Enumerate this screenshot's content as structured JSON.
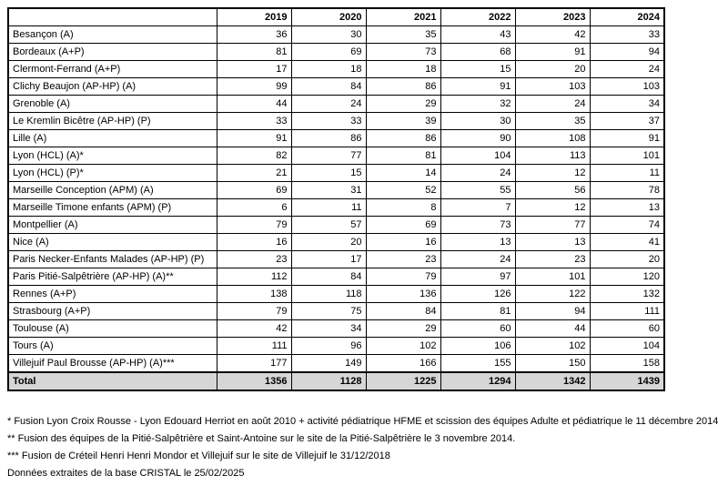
{
  "table": {
    "header": [
      "",
      "2019",
      "2020",
      "2021",
      "2022",
      "2023",
      "2024"
    ],
    "rows": [
      {
        "label": "Besançon (A)",
        "values": [
          "36",
          "30",
          "35",
          "43",
          "42",
          "33"
        ]
      },
      {
        "label": "Bordeaux (A+P)",
        "values": [
          "81",
          "69",
          "73",
          "68",
          "91",
          "94"
        ]
      },
      {
        "label": "Clermont-Ferrand (A+P)",
        "values": [
          "17",
          "18",
          "18",
          "15",
          "20",
          "24"
        ]
      },
      {
        "label": "Clichy Beaujon (AP-HP) (A)",
        "values": [
          "99",
          "84",
          "86",
          "91",
          "103",
          "103"
        ]
      },
      {
        "label": "Grenoble (A)",
        "values": [
          "44",
          "24",
          "29",
          "32",
          "24",
          "34"
        ]
      },
      {
        "label": "Le Kremlin Bicêtre (AP-HP) (P)",
        "values": [
          "33",
          "33",
          "39",
          "30",
          "35",
          "37"
        ]
      },
      {
        "label": "Lille (A)",
        "values": [
          "91",
          "86",
          "86",
          "90",
          "108",
          "91"
        ]
      },
      {
        "label": "Lyon (HCL) (A)*",
        "values": [
          "82",
          "77",
          "81",
          "104",
          "113",
          "101"
        ]
      },
      {
        "label": "Lyon (HCL) (P)*",
        "values": [
          "21",
          "15",
          "14",
          "24",
          "12",
          "11"
        ]
      },
      {
        "label": "Marseille Conception (APM) (A)",
        "values": [
          "69",
          "31",
          "52",
          "55",
          "56",
          "78"
        ]
      },
      {
        "label": "Marseille Timone enfants (APM) (P)",
        "values": [
          "6",
          "11",
          "8",
          "7",
          "12",
          "13"
        ]
      },
      {
        "label": "Montpellier (A)",
        "values": [
          "79",
          "57",
          "69",
          "73",
          "77",
          "74"
        ]
      },
      {
        "label": "Nice (A)",
        "values": [
          "16",
          "20",
          "16",
          "13",
          "13",
          "41"
        ]
      },
      {
        "label": "Paris Necker-Enfants Malades (AP-HP) (P)",
        "values": [
          "23",
          "17",
          "23",
          "24",
          "23",
          "20"
        ]
      },
      {
        "label": "Paris Pitié-Salpêtrière (AP-HP) (A)**",
        "values": [
          "112",
          "84",
          "79",
          "97",
          "101",
          "120"
        ]
      },
      {
        "label": "Rennes (A+P)",
        "values": [
          "138",
          "118",
          "136",
          "126",
          "122",
          "132"
        ]
      },
      {
        "label": "Strasbourg (A+P)",
        "values": [
          "79",
          "75",
          "84",
          "81",
          "94",
          "111"
        ]
      },
      {
        "label": "Toulouse (A)",
        "values": [
          "42",
          "34",
          "29",
          "60",
          "44",
          "60"
        ]
      },
      {
        "label": "Tours (A)",
        "values": [
          "111",
          "96",
          "102",
          "106",
          "102",
          "104"
        ]
      },
      {
        "label": "Villejuif Paul Brousse (AP-HP) (A)***",
        "values": [
          "177",
          "149",
          "166",
          "155",
          "150",
          "158"
        ]
      }
    ],
    "total": {
      "label": "Total",
      "values": [
        "1356",
        "1128",
        "1225",
        "1294",
        "1342",
        "1439"
      ]
    }
  },
  "footnotes": [
    "* Fusion Lyon Croix Rousse - Lyon Edouard Herriot en août 2010 + activité pédiatrique HFME et scission des équipes Adulte et pédiatrique le 11 décembre 2014",
    "** Fusion des équipes de la Pitié-Salpêtrière et Saint-Antoine sur le site de la Pitié-Salpêtrière le 3 novembre 2014.",
    "*** Fusion de Créteil Henri Henri Mondor  et Villejuif sur le site de Villejuif le 31/12/2018",
    "Données extraites de la base CRISTAL le 25/02/2025"
  ],
  "colors": {
    "total_row_bg": "#d6d6d6",
    "border": "#000000",
    "background": "#ffffff"
  }
}
